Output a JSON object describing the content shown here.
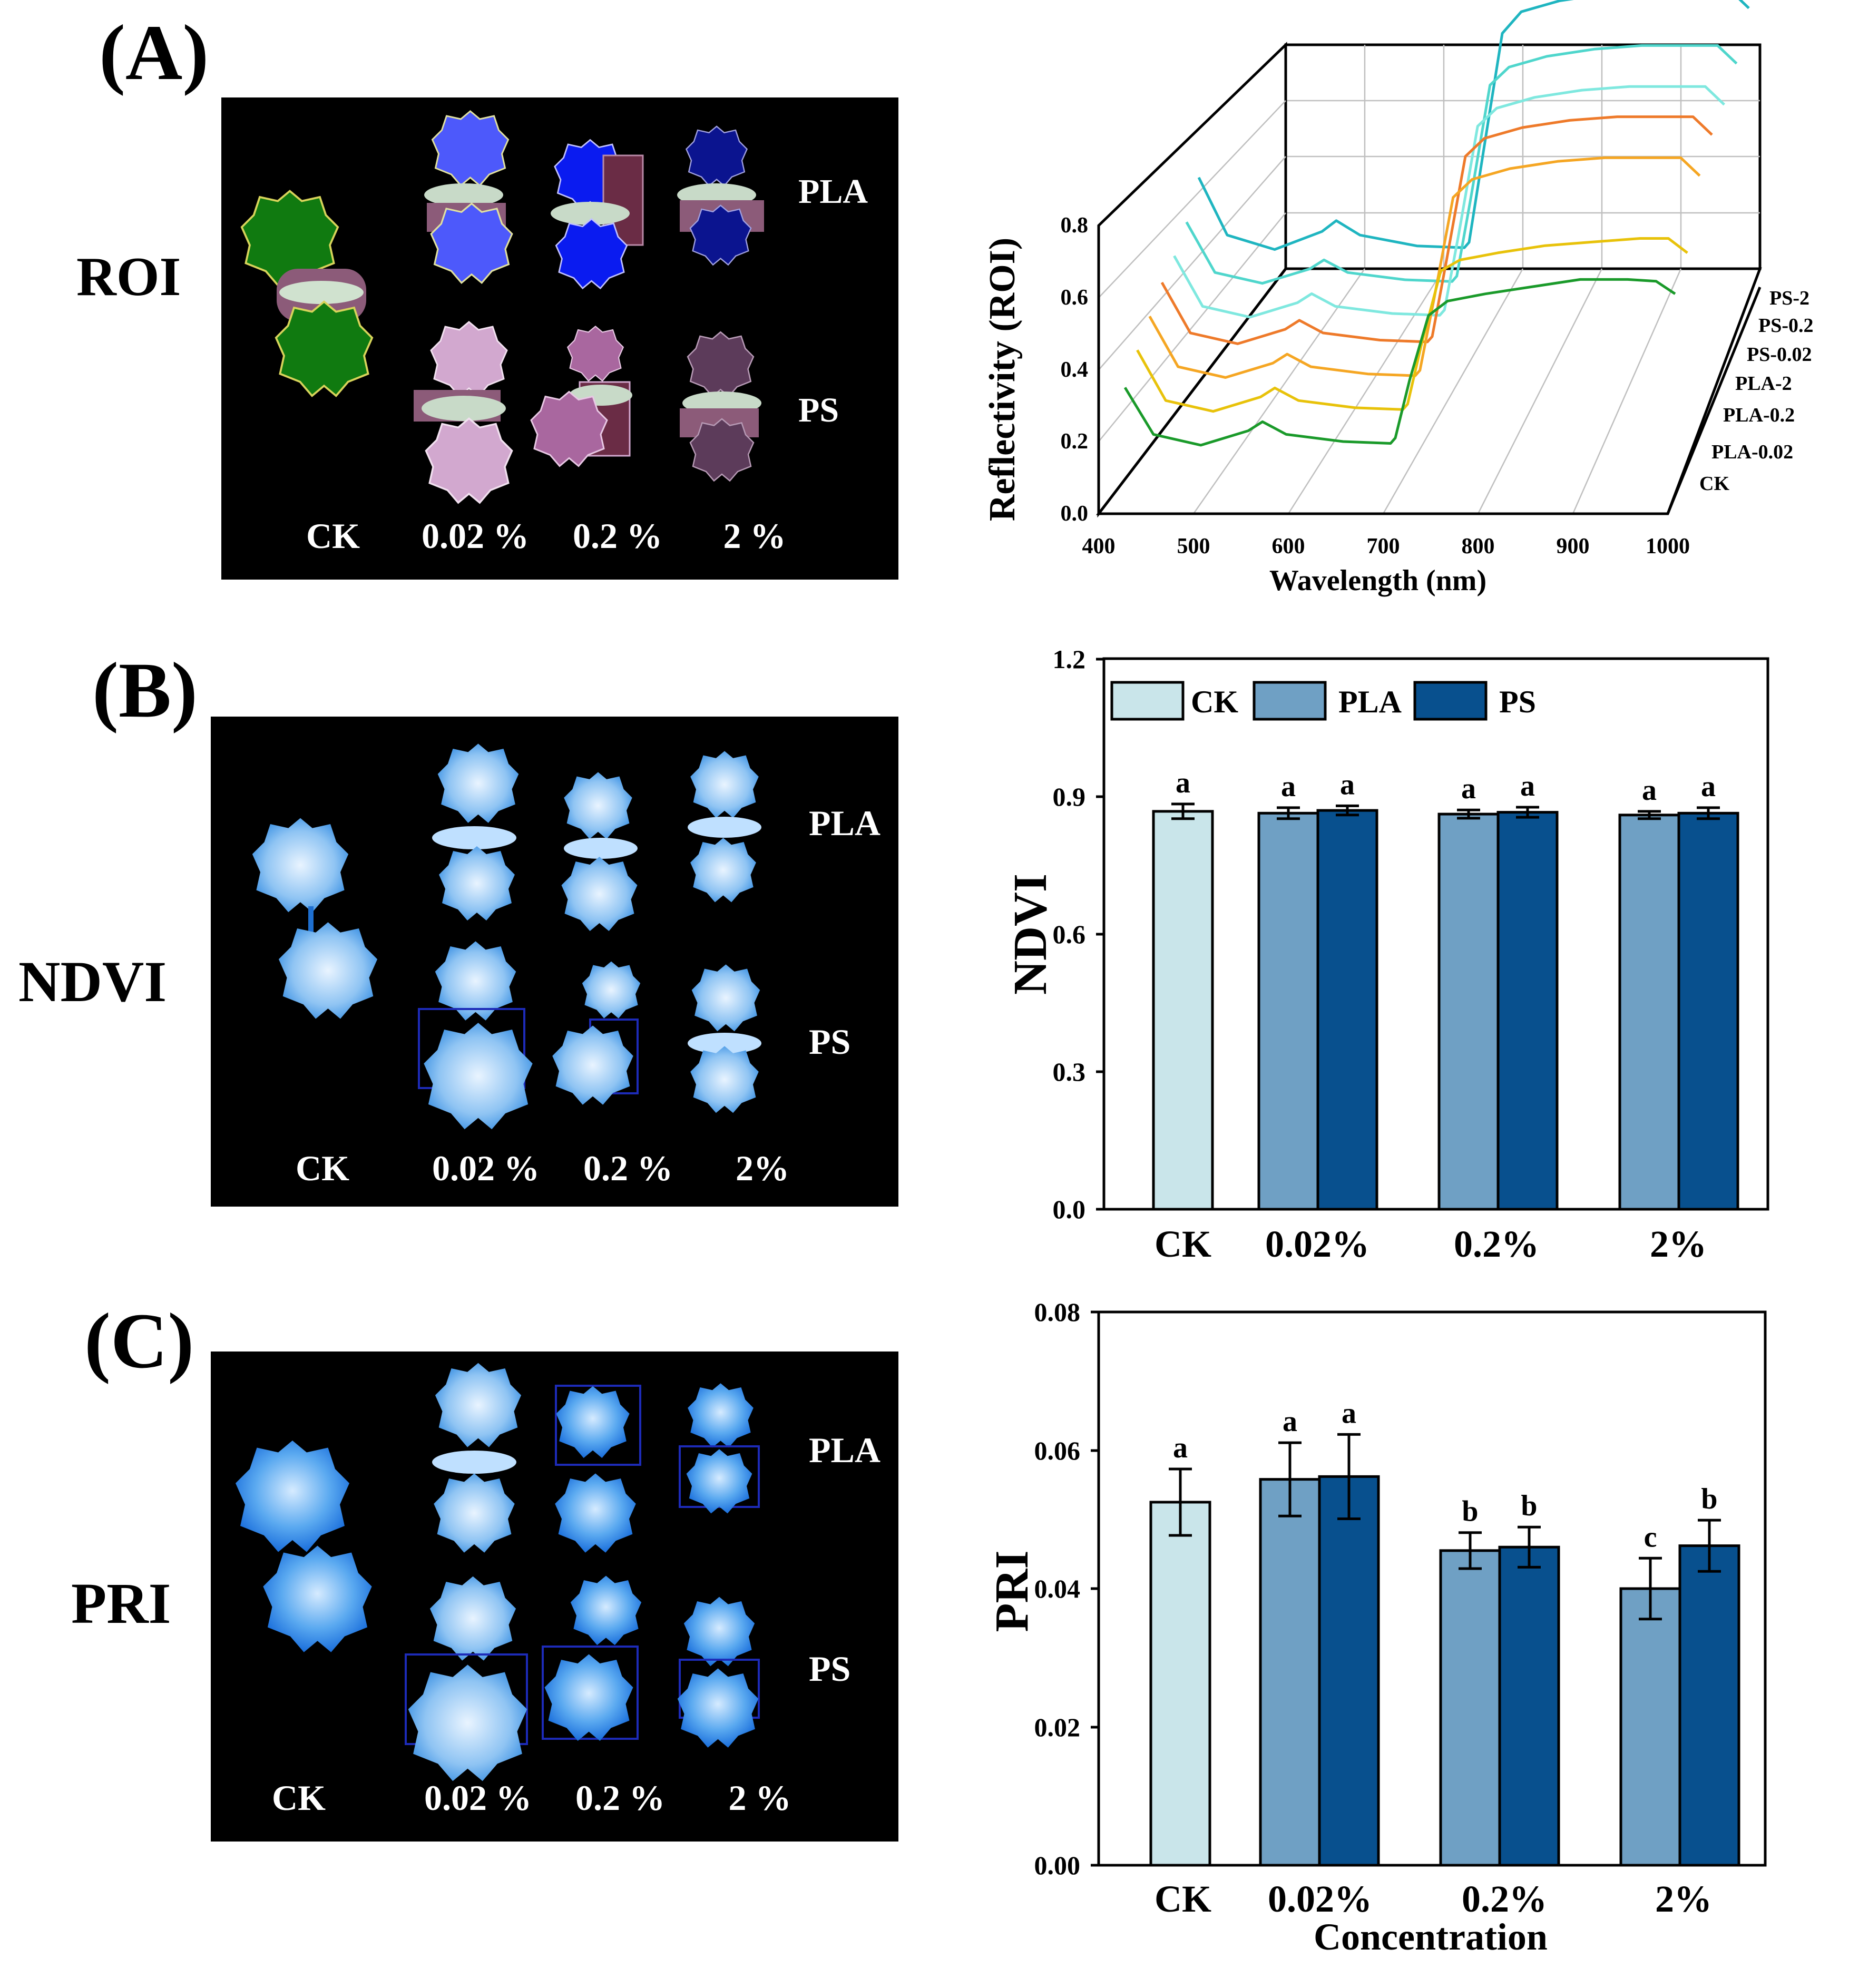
{
  "panels": {
    "A": {
      "letter": "(A)",
      "row_label": "ROI",
      "group_top": "PLA",
      "group_bottom": "PS",
      "conc_labels": [
        "CK",
        "0.02 %",
        "0.2 %",
        "2 %"
      ]
    },
    "B": {
      "letter": "(B)",
      "row_label": "NDVI",
      "group_top": "PLA",
      "group_bottom": "PS",
      "conc_labels": [
        "CK",
        "0.02 %",
        "0.2 %",
        "2%"
      ]
    },
    "C": {
      "letter": "(C)",
      "row_label": "PRI",
      "group_top": "PLA",
      "group_bottom": "PS",
      "conc_labels": [
        "CK",
        "0.02 %",
        "0.2 %",
        "2 %"
      ]
    }
  },
  "colors": {
    "CK": "#c9e5ea",
    "PLA": "#6fa0c4",
    "PS": "#08508e",
    "roi_ck": "#107a10",
    "roi_pla": [
      "#4d59fb",
      "#0a1bf0",
      "#0b148f"
    ],
    "roi_ps": [
      "#d2a8cf",
      "#a9679f",
      "#5c3b5a"
    ]
  },
  "chart_data": [
    {
      "id": "reflectance",
      "type": "line",
      "title": "",
      "xlabel": "Wavelength (nm)",
      "ylabel": "Reflectivity (ROI)",
      "xlim": [
        400,
        1000
      ],
      "ylim": [
        0.0,
        0.8
      ],
      "x_ticks": [
        "400",
        "500",
        "600",
        "700",
        "800",
        "900",
        "1000"
      ],
      "y_ticks": [
        "0.0",
        "0.2",
        "0.4",
        "0.6",
        "0.8"
      ],
      "x": [
        420,
        450,
        500,
        550,
        565,
        590,
        650,
        700,
        705,
        720,
        740,
        760,
        800,
        850,
        900,
        950,
        980,
        1000
      ],
      "series": [
        {
          "name": "CK",
          "color": "#1a9a2a",
          "values": [
            0.3,
            0.17,
            0.14,
            0.18,
            0.205,
            0.17,
            0.15,
            0.145,
            0.16,
            0.32,
            0.5,
            0.54,
            0.56,
            0.58,
            0.6,
            0.6,
            0.595,
            0.56
          ]
        },
        {
          "name": "PLA-0.02",
          "color": "#e8c20a",
          "values": [
            0.32,
            0.18,
            0.15,
            0.19,
            0.215,
            0.18,
            0.16,
            0.155,
            0.17,
            0.34,
            0.54,
            0.57,
            0.59,
            0.61,
            0.62,
            0.63,
            0.63,
            0.59
          ]
        },
        {
          "name": "PLA-0.2",
          "color": "#f5a623",
          "values": [
            0.33,
            0.19,
            0.16,
            0.2,
            0.225,
            0.19,
            0.17,
            0.165,
            0.18,
            0.38,
            0.66,
            0.71,
            0.74,
            0.76,
            0.77,
            0.77,
            0.77,
            0.72
          ]
        },
        {
          "name": "PLA-2",
          "color": "#ee7a2a",
          "values": [
            0.34,
            0.2,
            0.17,
            0.21,
            0.235,
            0.2,
            0.18,
            0.175,
            0.19,
            0.4,
            0.69,
            0.74,
            0.77,
            0.79,
            0.8,
            0.8,
            0.8,
            0.75
          ]
        },
        {
          "name": "PS-0.02",
          "color": "#7fe8df",
          "values": [
            0.33,
            0.19,
            0.16,
            0.2,
            0.225,
            0.19,
            0.17,
            0.165,
            0.18,
            0.39,
            0.69,
            0.74,
            0.77,
            0.79,
            0.8,
            0.8,
            0.8,
            0.75
          ]
        },
        {
          "name": "PS-0.2",
          "color": "#4fd6cc",
          "values": [
            0.34,
            0.2,
            0.17,
            0.21,
            0.235,
            0.2,
            0.18,
            0.175,
            0.19,
            0.41,
            0.72,
            0.77,
            0.8,
            0.82,
            0.83,
            0.83,
            0.83,
            0.78
          ]
        },
        {
          "name": "PS-2",
          "color": "#1fb5c0",
          "values": [
            0.38,
            0.22,
            0.18,
            0.23,
            0.26,
            0.22,
            0.19,
            0.185,
            0.2,
            0.45,
            0.78,
            0.84,
            0.87,
            0.89,
            0.9,
            0.9,
            0.9,
            0.85
          ]
        }
      ]
    },
    {
      "id": "ndvi",
      "type": "bar",
      "ylabel": "NDVI",
      "ylim": [
        0.0,
        1.2
      ],
      "y_ticks": [
        "0.0",
        "0.3",
        "0.6",
        "0.9",
        "1.2"
      ],
      "categories": [
        "CK",
        "0.02%",
        "0.2%",
        "2%"
      ],
      "legend": [
        "CK",
        "PLA",
        "PS"
      ],
      "series": [
        {
          "name": "CK",
          "values": [
            0.868,
            null,
            null,
            null
          ],
          "errors": [
            0.016,
            null,
            null,
            null
          ],
          "letters": [
            "a",
            null,
            null,
            null
          ]
        },
        {
          "name": "PLA",
          "values": [
            null,
            0.864,
            0.862,
            0.86
          ],
          "errors": [
            null,
            0.012,
            0.009,
            0.008
          ],
          "letters": [
            null,
            "a",
            "a",
            "a"
          ]
        },
        {
          "name": "PS",
          "values": [
            null,
            0.87,
            0.866,
            0.864
          ],
          "errors": [
            null,
            0.01,
            0.011,
            0.012
          ],
          "letters": [
            null,
            "a",
            "a",
            "a"
          ]
        }
      ]
    },
    {
      "id": "pri",
      "type": "bar",
      "ylabel": "PRI",
      "xlabel": "Concentration",
      "ylim": [
        0.0,
        0.08
      ],
      "y_ticks": [
        "0.00",
        "0.02",
        "0.04",
        "0.06",
        "0.08"
      ],
      "categories": [
        "CK",
        "0.02%",
        "0.2%",
        "2%"
      ],
      "series": [
        {
          "name": "CK",
          "values": [
            0.0525,
            null,
            null,
            null
          ],
          "errors": [
            0.0048,
            null,
            null,
            null
          ],
          "letters": [
            "a",
            null,
            null,
            null
          ]
        },
        {
          "name": "PLA",
          "values": [
            null,
            0.0558,
            0.0455,
            0.04
          ],
          "errors": [
            null,
            0.0053,
            0.0026,
            0.0044
          ],
          "letters": [
            null,
            "a",
            "b",
            "c"
          ]
        },
        {
          "name": "PS",
          "values": [
            null,
            0.0562,
            0.046,
            0.0462
          ],
          "errors": [
            null,
            0.0061,
            0.0029,
            0.0037
          ],
          "letters": [
            null,
            "a",
            "b",
            "b"
          ]
        }
      ]
    }
  ]
}
